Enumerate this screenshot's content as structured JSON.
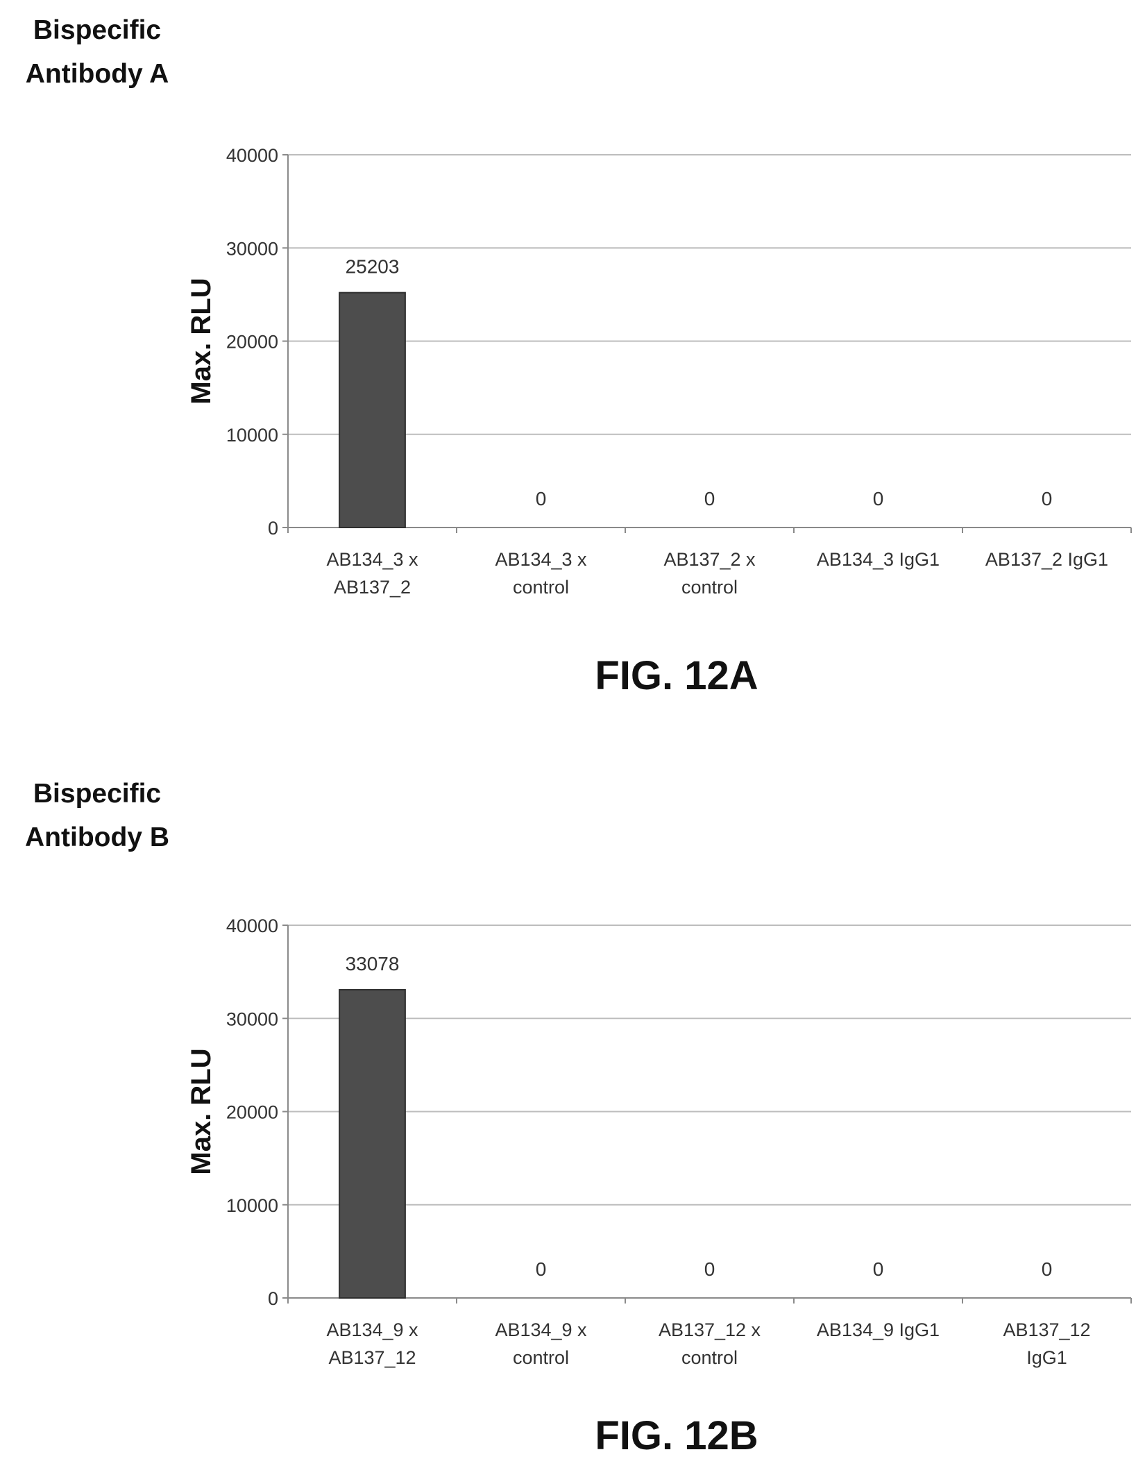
{
  "colors": {
    "bar": "#4d4d4d",
    "grid": "#bdbdbd",
    "axis": "#8a8a8a",
    "text": "#333333"
  },
  "panels": [
    {
      "title_line1": "Bispecific",
      "title_line2": "Antibody A",
      "caption": "FIG. 12A"
    },
    {
      "title_line1": "Bispecific",
      "title_line2": "Antibody B",
      "caption": "FIG. 12B"
    }
  ],
  "chart_data": [
    {
      "type": "bar",
      "ylabel": "Max. RLU",
      "ylim": [
        0,
        40000
      ],
      "yticks": [
        "0",
        "10000",
        "20000",
        "30000",
        "40000"
      ],
      "grid": true,
      "categories": [
        [
          "AB134_3 x",
          "AB137_2"
        ],
        [
          "AB134_3 x",
          "control"
        ],
        [
          "AB137_2 x",
          "control"
        ],
        [
          "AB134_3  IgG1"
        ],
        [
          "AB137_2 IgG1"
        ]
      ],
      "values": [
        25203,
        0,
        0,
        0,
        0
      ],
      "data_labels": [
        "25203",
        "0",
        "0",
        "0",
        "0"
      ]
    },
    {
      "type": "bar",
      "ylabel": "Max. RLU",
      "ylim": [
        0,
        40000
      ],
      "yticks": [
        "0",
        "10000",
        "20000",
        "30000",
        "40000"
      ],
      "grid": true,
      "categories": [
        [
          "AB134_9 x",
          "AB137_12"
        ],
        [
          "AB134_9 x",
          "control"
        ],
        [
          "AB137_12 x",
          "control"
        ],
        [
          "AB134_9  IgG1"
        ],
        [
          "AB137_12",
          "IgG1"
        ]
      ],
      "values": [
        33078,
        0,
        0,
        0,
        0
      ],
      "data_labels": [
        "33078",
        "0",
        "0",
        "0",
        "0"
      ]
    }
  ]
}
